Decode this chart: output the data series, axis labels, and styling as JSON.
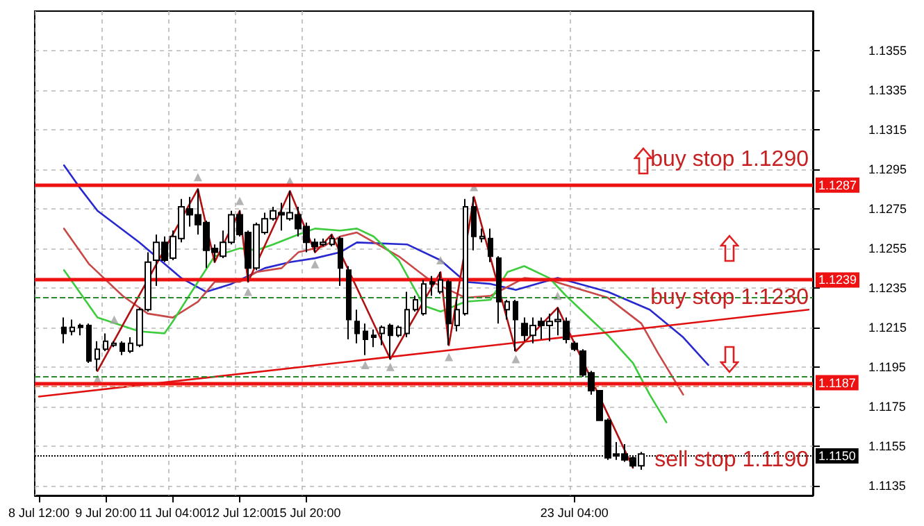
{
  "chart_data": {
    "type": "candlestick",
    "categories": [
      "8 Jul 12:00",
      null,
      null,
      null,
      null,
      null,
      null,
      null,
      "9 Jul 20:00",
      null,
      null,
      null,
      null,
      null,
      null,
      null,
      "11 Jul 04:00",
      null,
      null,
      null,
      null,
      null,
      null,
      null,
      "12 Jul 12:00",
      null,
      null,
      null,
      null,
      null,
      null,
      null,
      "15 Jul 20:00",
      null,
      null,
      null,
      null,
      null,
      null,
      null,
      null,
      null,
      null,
      null,
      null,
      null,
      null,
      null,
      null,
      null,
      null,
      null,
      null,
      null,
      null,
      null,
      null,
      null,
      null,
      null,
      null,
      null,
      null,
      null,
      "23 Jul 04:00",
      null,
      null,
      null,
      null,
      null,
      null,
      null,
      null,
      null,
      null,
      null,
      null,
      null,
      null,
      null,
      null,
      null,
      null,
      null,
      null,
      null,
      null,
      null,
      null,
      null,
      null,
      null,
      null
    ],
    "ohlc": [
      null,
      null,
      null,
      [
        1.1215,
        1.122,
        1.1207,
        1.1212
      ],
      [
        1.1213,
        1.1219,
        1.1211,
        1.1215
      ],
      [
        1.1216,
        1.1217,
        1.1211,
        1.1215
      ],
      [
        1.1216,
        1.1217,
        1.1197,
        1.1198
      ],
      [
        1.1199,
        1.1208,
        1.1193,
        1.1204
      ],
      [
        1.1204,
        1.1212,
        1.1203,
        1.1208
      ],
      [
        1.1206,
        1.1208,
        1.1205,
        1.1207
      ],
      [
        1.1207,
        1.1208,
        1.1201,
        1.1203
      ],
      [
        1.1203,
        1.121,
        1.1202,
        1.1207
      ],
      [
        1.1206,
        1.1225,
        1.1205,
        1.1224
      ],
      [
        1.1224,
        1.1253,
        1.1223,
        1.1248
      ],
      [
        1.1249,
        1.1262,
        1.1236,
        1.1258
      ],
      [
        1.1258,
        1.1261,
        1.1248,
        1.1249
      ],
      [
        1.125,
        1.1264,
        1.1249,
        1.1261
      ],
      [
        1.126,
        1.128,
        1.1258,
        1.1276
      ],
      [
        1.1275,
        1.1281,
        1.1266,
        1.1272
      ],
      [
        1.1272,
        1.1285,
        1.1262,
        1.1267
      ],
      [
        1.1268,
        1.1269,
        1.1245,
        1.1254
      ],
      [
        1.1255,
        1.1257,
        1.1248,
        1.1253
      ],
      [
        1.1251,
        1.1264,
        1.125,
        1.1258
      ],
      [
        1.1258,
        1.1274,
        1.1257,
        1.1272
      ],
      [
        1.1272,
        1.1274,
        1.1261,
        1.1262
      ],
      [
        1.1263,
        1.1264,
        1.1238,
        1.1245
      ],
      [
        1.1245,
        1.1268,
        1.1244,
        1.1267
      ],
      [
        1.1263,
        1.1273,
        1.1262,
        1.127
      ],
      [
        1.127,
        1.1276,
        1.1269,
        1.1274
      ],
      [
        1.1273,
        1.1278,
        1.1264,
        1.1272
      ],
      [
        1.127,
        1.1284,
        1.1269,
        1.1273
      ],
      [
        1.1272,
        1.1276,
        1.1261,
        1.1265
      ],
      [
        1.1266,
        1.1268,
        1.1253,
        1.1258
      ],
      [
        1.1258,
        1.126,
        1.1253,
        1.1256
      ],
      [
        1.1257,
        1.126,
        1.1256,
        1.1258
      ],
      [
        1.1257,
        1.1262,
        1.1256,
        1.126
      ],
      [
        1.126,
        1.1261,
        1.1236,
        1.1245
      ],
      [
        1.1244,
        1.1246,
        1.1209,
        1.1219
      ],
      [
        1.1218,
        1.1224,
        1.1207,
        1.1212
      ],
      [
        1.1213,
        1.1217,
        1.1201,
        1.1209
      ],
      [
        1.1211,
        1.1214,
        1.1205,
        1.121
      ],
      [
        1.1212,
        1.1216,
        1.1206,
        1.1215
      ],
      [
        1.1216,
        1.1217,
        1.1199,
        1.1211
      ],
      [
        1.1211,
        1.1216,
        1.121,
        1.1215
      ],
      [
        1.1212,
        1.1233,
        1.121,
        1.1224
      ],
      [
        1.1224,
        1.1231,
        1.1223,
        1.1229
      ],
      [
        1.1222,
        1.1239,
        1.1221,
        1.1237
      ],
      [
        1.1238,
        1.1241,
        1.1231,
        1.1237
      ],
      [
        1.1233,
        1.1243,
        1.1232,
        1.1239
      ],
      [
        1.1238,
        1.1239,
        1.1206,
        1.1217
      ],
      [
        1.1216,
        1.1229,
        1.1213,
        1.1224
      ],
      [
        1.1222,
        1.128,
        1.1221,
        1.1276
      ],
      [
        1.1276,
        1.1281,
        1.1254,
        1.1261
      ],
      [
        1.126,
        1.1265,
        1.1258,
        1.1261
      ],
      [
        1.126,
        1.1265,
        1.1248,
        1.1251
      ],
      [
        1.125,
        1.1251,
        1.1217,
        1.1228
      ],
      [
        1.1224,
        1.1229,
        1.1219,
        1.1228
      ],
      [
        1.1228,
        1.1229,
        1.1203,
        1.1219
      ],
      [
        1.1217,
        1.122,
        1.1208,
        1.1211
      ],
      [
        1.1211,
        1.122,
        1.1207,
        1.1216
      ],
      [
        1.1218,
        1.122,
        1.1209,
        1.1216
      ],
      [
        1.1216,
        1.1222,
        1.1208,
        1.1218
      ],
      [
        1.1218,
        1.1225,
        1.1211,
        1.1219
      ],
      [
        1.1218,
        1.122,
        1.1207,
        1.1209
      ],
      [
        1.1207,
        1.1208,
        1.1203,
        1.1204
      ],
      [
        1.1203,
        1.1204,
        1.119,
        1.1191
      ],
      [
        1.1192,
        1.1193,
        1.1181,
        1.1183
      ],
      [
        1.1183,
        1.1183,
        1.1168,
        1.1168
      ],
      [
        1.1168,
        1.1169,
        1.1148,
        1.1149
      ],
      [
        1.1151,
        1.1157,
        1.1148,
        1.115
      ],
      [
        1.1151,
        1.1156,
        1.1147,
        1.1148
      ],
      [
        1.1149,
        1.115,
        1.1144,
        1.1145
      ],
      [
        1.1145,
        1.1152,
        1.1143,
        1.1151
      ],
      null,
      null,
      null,
      null,
      null,
      null,
      null,
      null,
      null,
      null,
      null,
      null,
      null,
      null,
      null,
      null,
      null,
      null,
      null,
      null
    ],
    "series": [
      {
        "type": "line",
        "color": "#2828d0",
        "values": [
          null,
          null,
          null,
          1.1297,
          null,
          1.1285,
          null,
          1.1274,
          null,
          null,
          null,
          null,
          1.1258,
          null,
          null,
          null,
          null,
          1.124,
          null,
          null,
          1.1233,
          null,
          null,
          1.1237,
          null,
          null,
          null,
          1.1245,
          null,
          null,
          1.1248,
          null,
          null,
          1.125,
          null,
          null,
          1.1253,
          null,
          1.1258,
          null,
          null,
          null,
          null,
          null,
          1.1257,
          null,
          null,
          null,
          1.1249,
          null,
          null,
          1.1238,
          null,
          null,
          1.1237,
          null,
          null,
          1.1234,
          null,
          null,
          null,
          null,
          1.124,
          null,
          null,
          null,
          null,
          null,
          1.1233,
          null,
          null,
          null,
          null,
          1.1224,
          null,
          null,
          null,
          1.121,
          null,
          null,
          1.1196,
          null,
          null,
          null,
          null,
          null,
          null,
          null,
          null,
          null,
          null,
          null,
          null
        ]
      },
      {
        "type": "line",
        "color": "#c84848",
        "values": [
          null,
          null,
          null,
          1.1265,
          null,
          null,
          1.1247,
          null,
          null,
          null,
          1.1231,
          null,
          null,
          1.1222,
          null,
          null,
          1.122,
          null,
          null,
          1.1228,
          null,
          1.1238,
          null,
          null,
          1.1238,
          null,
          1.1243,
          null,
          null,
          1.1245,
          null,
          1.1253,
          null,
          null,
          1.1256,
          null,
          1.1261,
          null,
          1.1263,
          null,
          null,
          null,
          null,
          1.1251,
          null,
          null,
          null,
          1.1238,
          null,
          null,
          null,
          1.123,
          null,
          null,
          1.1231,
          null,
          null,
          null,
          1.124,
          null,
          null,
          1.1239,
          null,
          null,
          null,
          null,
          null,
          null,
          1.123,
          null,
          null,
          null,
          1.1217,
          null,
          1.1202,
          null,
          null,
          1.1181,
          null,
          null,
          null,
          null,
          null,
          null,
          null,
          null,
          null,
          null,
          null,
          null,
          null,
          null,
          null
        ]
      },
      {
        "type": "line",
        "color": "#3ccc3c",
        "values": [
          null,
          null,
          null,
          1.1244,
          null,
          null,
          null,
          1.122,
          null,
          null,
          null,
          null,
          1.1213,
          null,
          null,
          1.1212,
          1.1218,
          null,
          null,
          1.1238,
          null,
          1.1251,
          null,
          null,
          1.1255,
          null,
          1.1254,
          null,
          1.1257,
          null,
          null,
          1.1262,
          null,
          1.1265,
          null,
          null,
          1.1264,
          null,
          1.1265,
          null,
          1.1261,
          null,
          null,
          1.1249,
          null,
          null,
          1.1226,
          null,
          1.1223,
          null,
          null,
          1.1228,
          null,
          null,
          1.1229,
          null,
          1.1243,
          null,
          1.1246,
          null,
          null,
          1.124,
          null,
          1.1231,
          null,
          null,
          null,
          null,
          1.1211,
          null,
          null,
          1.1197,
          null,
          1.1181,
          null,
          1.1167,
          null,
          null,
          null,
          null,
          null,
          null,
          null,
          null,
          null,
          null,
          null,
          null,
          null,
          null,
          null,
          null,
          null
        ]
      },
      {
        "type": "line",
        "color": "#b01010",
        "values": [
          null,
          null,
          null,
          null,
          null,
          null,
          null,
          1.1193,
          null,
          null,
          null,
          null,
          null,
          null,
          null,
          null,
          null,
          null,
          null,
          1.1285,
          null,
          1.1248,
          null,
          null,
          1.1274,
          1.1238,
          null,
          null,
          null,
          null,
          1.1284,
          null,
          null,
          1.1253,
          null,
          1.1262,
          null,
          null,
          null,
          null,
          null,
          null,
          1.1199,
          null,
          null,
          null,
          null,
          null,
          1.1243,
          1.1206,
          null,
          null,
          1.1281,
          null,
          null,
          null,
          null,
          1.1203,
          null,
          null,
          null,
          null,
          1.1225,
          null,
          null,
          null,
          null,
          null,
          null,
          null,
          null,
          1.1144,
          null,
          null,
          null,
          null,
          null,
          null,
          null,
          null,
          null,
          null,
          null,
          null,
          null,
          null,
          null,
          null,
          null,
          null,
          null,
          null,
          null
        ]
      },
      {
        "type": "line",
        "color": "#e01010",
        "values": [
          1.118,
          null,
          null,
          null,
          null,
          null,
          null,
          null,
          null,
          null,
          null,
          null,
          null,
          null,
          null,
          null,
          null,
          null,
          null,
          null,
          null,
          null,
          null,
          null,
          null,
          null,
          null,
          null,
          null,
          null,
          null,
          null,
          null,
          null,
          null,
          null,
          null,
          null,
          null,
          null,
          null,
          null,
          null,
          null,
          null,
          null,
          null,
          null,
          null,
          null,
          null,
          null,
          null,
          null,
          null,
          null,
          null,
          null,
          null,
          null,
          null,
          null,
          null,
          null,
          null,
          null,
          null,
          null,
          null,
          null,
          null,
          null,
          null,
          null,
          null,
          null,
          null,
          null,
          null,
          null,
          null,
          null,
          null,
          null,
          null,
          null,
          null,
          null,
          null,
          null,
          null,
          null,
          1.1224
        ]
      },
      {
        "type": "scatter",
        "color": "#a0a0a0",
        "marker": "triangle",
        "values": [
          null,
          null,
          null,
          null,
          null,
          null,
          null,
          1.1189,
          null,
          1.1219,
          null,
          null,
          null,
          null,
          null,
          null,
          null,
          null,
          null,
          1.1291,
          null,
          null,
          null,
          null,
          1.1279,
          1.1233,
          null,
          null,
          null,
          null,
          1.1289,
          null,
          null,
          1.1247,
          null,
          null,
          null,
          null,
          null,
          1.1196,
          null,
          null,
          1.1195,
          null,
          null,
          null,
          null,
          null,
          1.1249,
          1.12,
          null,
          null,
          1.1286,
          null,
          null,
          null,
          null,
          1.1199,
          null,
          null,
          null,
          null,
          1.1231,
          null,
          null,
          null,
          null,
          null,
          null,
          null,
          null,
          null,
          null,
          null,
          null,
          null,
          null,
          null,
          null,
          null,
          null,
          null,
          null,
          null,
          null,
          null,
          null,
          null,
          null,
          null,
          null,
          null,
          null
        ]
      }
    ],
    "ylim": [
      1.113,
      1.1375
    ],
    "yticks": [
      1.1135,
      1.1155,
      1.1175,
      1.1195,
      1.1215,
      1.1235,
      1.1255,
      1.1275,
      1.1295,
      1.1315,
      1.1335,
      1.1355
    ],
    "grid": true,
    "ref_lines": [
      {
        "axis": "y",
        "value": 1.1287,
        "label": "1.1287",
        "color": "#ee1111",
        "line_style": "solid"
      },
      {
        "axis": "y",
        "value": 1.1239,
        "label": "1.1239",
        "color": "#ee1111",
        "line_style": "solid"
      },
      {
        "axis": "y",
        "value": 1.1187,
        "label": "1.1187",
        "color": "#ee1111",
        "line_style": "solid"
      },
      {
        "axis": "y",
        "value": 1.123,
        "color": "#2a8a2a",
        "line_style": "dashed"
      },
      {
        "axis": "y",
        "value": 1.119,
        "color": "#2a8a2a",
        "line_style": "dashed"
      },
      {
        "axis": "y",
        "value": 1.1185,
        "color": "#e09070",
        "line_style": "dashed"
      },
      {
        "axis": "y",
        "value": 1.115,
        "label": "1.1150",
        "color": "#000000",
        "line_style": "dotted"
      }
    ],
    "annotations": [
      "buy stop 1.1290",
      "buy stop 1:1230",
      "sell stop 1.1190"
    ]
  }
}
